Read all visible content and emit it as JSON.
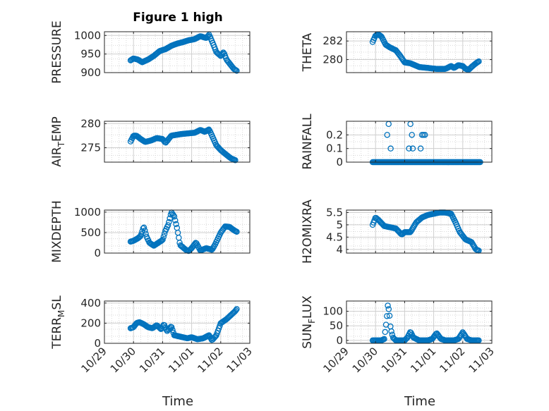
{
  "figure_title": "Figure 1 high",
  "marker_color": "#0072BD",
  "axis_color": "#262626",
  "grid_color": "#d9d9d9",
  "xaxis": {
    "label": "Time",
    "ticks": [
      {
        "value": 0,
        "label": "10/29"
      },
      {
        "value": 1,
        "label": "10/30"
      },
      {
        "value": 2,
        "label": "10/31"
      },
      {
        "value": 3,
        "label": "11/01"
      },
      {
        "value": 4,
        "label": "11/02"
      },
      {
        "value": 5,
        "label": "11/03"
      }
    ],
    "xlim": [
      0,
      5
    ]
  },
  "chart_data": [
    {
      "type": "scatter",
      "name": "pressure",
      "ylabel": "PRESSURE",
      "ylim": [
        900,
        1010
      ],
      "yticks": [
        {
          "v": 900,
          "l": "900"
        },
        {
          "v": 950,
          "l": "950"
        },
        {
          "v": 1000,
          "l": "1000"
        }
      ],
      "keys": [
        [
          0.9,
          933
        ],
        [
          1.0,
          938
        ],
        [
          1.15,
          935
        ],
        [
          1.3,
          928
        ],
        [
          1.5,
          935
        ],
        [
          1.7,
          945
        ],
        [
          1.9,
          958
        ],
        [
          2.1,
          963
        ],
        [
          2.3,
          972
        ],
        [
          2.5,
          978
        ],
        [
          2.7,
          982
        ],
        [
          2.9,
          987
        ],
        [
          3.1,
          990
        ],
        [
          3.3,
          998
        ],
        [
          3.5,
          993
        ],
        [
          3.6,
          1002
        ],
        [
          3.75,
          975
        ],
        [
          3.85,
          955
        ],
        [
          4.0,
          945
        ],
        [
          4.1,
          955
        ],
        [
          4.2,
          935
        ],
        [
          4.35,
          920
        ],
        [
          4.45,
          910
        ],
        [
          4.55,
          905
        ]
      ]
    },
    {
      "type": "scatter",
      "name": "theta",
      "ylabel": "THETA",
      "ylim": [
        278.6,
        283.0
      ],
      "yticks": [
        {
          "v": 280,
          "l": "280"
        },
        {
          "v": 282,
          "l": "282"
        }
      ],
      "keys": [
        [
          0.9,
          281.9
        ],
        [
          1.0,
          282.6
        ],
        [
          1.1,
          282.7
        ],
        [
          1.2,
          282.5
        ],
        [
          1.35,
          281.6
        ],
        [
          1.5,
          281.3
        ],
        [
          1.7,
          281.0
        ],
        [
          1.85,
          280.4
        ],
        [
          2.0,
          279.7
        ],
        [
          2.2,
          279.6
        ],
        [
          2.5,
          279.2
        ],
        [
          2.8,
          279.1
        ],
        [
          3.1,
          279.0
        ],
        [
          3.4,
          279.0
        ],
        [
          3.6,
          279.3
        ],
        [
          3.7,
          279.1
        ],
        [
          3.85,
          279.4
        ],
        [
          4.0,
          279.3
        ],
        [
          4.1,
          279.0
        ],
        [
          4.2,
          278.9
        ],
        [
          4.3,
          279.2
        ],
        [
          4.45,
          279.6
        ],
        [
          4.55,
          279.8
        ]
      ]
    },
    {
      "type": "scatter",
      "name": "air_temp",
      "ylabel_main": "AIR",
      "ylabel_sub": "T",
      "ylabel_rest": "EMP",
      "ylim": [
        272,
        280.5
      ],
      "yticks": [
        {
          "v": 275,
          "l": "275"
        },
        {
          "v": 280,
          "l": "280"
        }
      ],
      "keys": [
        [
          0.9,
          276.3
        ],
        [
          1.0,
          277.5
        ],
        [
          1.1,
          277.5
        ],
        [
          1.25,
          276.8
        ],
        [
          1.4,
          276.2
        ],
        [
          1.6,
          276.5
        ],
        [
          1.8,
          277.0
        ],
        [
          2.0,
          276.8
        ],
        [
          2.1,
          276.0
        ],
        [
          2.3,
          277.5
        ],
        [
          2.6,
          277.8
        ],
        [
          2.9,
          278.0
        ],
        [
          3.1,
          278.1
        ],
        [
          3.3,
          278.7
        ],
        [
          3.45,
          278.3
        ],
        [
          3.6,
          278.8
        ],
        [
          3.7,
          277.5
        ],
        [
          3.85,
          275.5
        ],
        [
          4.0,
          274.5
        ],
        [
          4.2,
          273.5
        ],
        [
          4.35,
          272.8
        ],
        [
          4.5,
          272.4
        ]
      ]
    },
    {
      "type": "scatter",
      "name": "rainfall",
      "ylabel": "RAINFALL",
      "ylim": [
        0,
        0.3
      ],
      "yticks": [
        {
          "v": 0,
          "l": "0"
        },
        {
          "v": 0.1,
          "l": "0.1"
        },
        {
          "v": 0.2,
          "l": "0.2"
        }
      ],
      "baseline": {
        "from": 0.9,
        "to": 4.6,
        "n": 130,
        "value": 0
      },
      "extra_points": [
        [
          1.4,
          0.2
        ],
        [
          1.45,
          0.28
        ],
        [
          1.52,
          0.1
        ],
        [
          2.15,
          0.1
        ],
        [
          2.2,
          0.28
        ],
        [
          2.25,
          0.2
        ],
        [
          2.28,
          0.1
        ],
        [
          2.55,
          0.1
        ],
        [
          2.6,
          0.2
        ],
        [
          2.65,
          0.2
        ],
        [
          2.7,
          0.2
        ]
      ]
    },
    {
      "type": "scatter",
      "name": "mixdepth",
      "ylabel": "MIXDEPTH",
      "ylim": [
        0,
        1050
      ],
      "yticks": [
        {
          "v": 0,
          "l": "0"
        },
        {
          "v": 500,
          "l": "500"
        },
        {
          "v": 1000,
          "l": "1000"
        }
      ],
      "keys": [
        [
          0.9,
          280
        ],
        [
          1.0,
          300
        ],
        [
          1.15,
          360
        ],
        [
          1.25,
          420
        ],
        [
          1.35,
          650
        ],
        [
          1.45,
          400
        ],
        [
          1.55,
          250
        ],
        [
          1.7,
          180
        ],
        [
          1.85,
          250
        ],
        [
          2.0,
          320
        ],
        [
          2.1,
          550
        ],
        [
          2.2,
          700
        ],
        [
          2.3,
          1000
        ],
        [
          2.4,
          900
        ],
        [
          2.5,
          600
        ],
        [
          2.6,
          200
        ],
        [
          2.8,
          80
        ],
        [
          2.9,
          50
        ],
        [
          3.0,
          120
        ],
        [
          3.15,
          260
        ],
        [
          3.3,
          60
        ],
        [
          3.5,
          120
        ],
        [
          3.7,
          80
        ],
        [
          3.8,
          200
        ],
        [
          4.0,
          500
        ],
        [
          4.15,
          650
        ],
        [
          4.3,
          640
        ],
        [
          4.45,
          560
        ],
        [
          4.55,
          520
        ]
      ]
    },
    {
      "type": "scatter",
      "name": "h2omixra",
      "ylabel": "H2OMIXRA",
      "ylim": [
        3.85,
        5.6
      ],
      "yticks": [
        {
          "v": 4,
          "l": "4"
        },
        {
          "v": 4.5,
          "l": "4.5"
        },
        {
          "v": 5,
          "l": "5"
        },
        {
          "v": 5.5,
          "l": "5.5"
        }
      ],
      "keys": [
        [
          0.9,
          5.0
        ],
        [
          1.0,
          5.3
        ],
        [
          1.1,
          5.2
        ],
        [
          1.3,
          4.95
        ],
        [
          1.5,
          4.9
        ],
        [
          1.7,
          4.85
        ],
        [
          1.9,
          4.6
        ],
        [
          2.0,
          4.7
        ],
        [
          2.2,
          4.7
        ],
        [
          2.4,
          5.1
        ],
        [
          2.6,
          5.3
        ],
        [
          2.8,
          5.4
        ],
        [
          3.0,
          5.45
        ],
        [
          3.2,
          5.5
        ],
        [
          3.4,
          5.5
        ],
        [
          3.6,
          5.45
        ],
        [
          3.75,
          5.1
        ],
        [
          3.9,
          4.7
        ],
        [
          4.1,
          4.4
        ],
        [
          4.3,
          4.3
        ],
        [
          4.45,
          4.0
        ],
        [
          4.55,
          3.95
        ]
      ]
    },
    {
      "type": "scatter",
      "name": "terr_msl",
      "ylabel_main": "TERR",
      "ylabel_sub": "M",
      "ylabel_rest": "SL",
      "ylim": [
        0,
        420
      ],
      "yticks": [
        {
          "v": 0,
          "l": "0"
        },
        {
          "v": 200,
          "l": "200"
        },
        {
          "v": 400,
          "l": "400"
        }
      ],
      "keys": [
        [
          0.9,
          150
        ],
        [
          1.0,
          160
        ],
        [
          1.1,
          200
        ],
        [
          1.2,
          210
        ],
        [
          1.35,
          190
        ],
        [
          1.5,
          160
        ],
        [
          1.65,
          150
        ],
        [
          1.8,
          180
        ],
        [
          1.95,
          140
        ],
        [
          2.05,
          190
        ],
        [
          2.15,
          120
        ],
        [
          2.3,
          170
        ],
        [
          2.4,
          80
        ],
        [
          2.55,
          70
        ],
        [
          2.7,
          60
        ],
        [
          2.85,
          50
        ],
        [
          3.0,
          60
        ],
        [
          3.2,
          40
        ],
        [
          3.4,
          50
        ],
        [
          3.6,
          80
        ],
        [
          3.7,
          30
        ],
        [
          3.85,
          80
        ],
        [
          4.0,
          200
        ],
        [
          4.2,
          240
        ],
        [
          4.35,
          280
        ],
        [
          4.5,
          320
        ],
        [
          4.55,
          340
        ]
      ]
    },
    {
      "type": "scatter",
      "name": "sun_flux",
      "ylabel_main": "SUN",
      "ylabel_sub": "F",
      "ylabel_rest": "LUX",
      "ylim": [
        -10,
        135
      ],
      "yticks": [
        {
          "v": 0,
          "l": "0"
        },
        {
          "v": 50,
          "l": "50"
        },
        {
          "v": 100,
          "l": "100"
        }
      ],
      "keys": [
        [
          0.9,
          0
        ],
        [
          1.2,
          0
        ],
        [
          1.3,
          5
        ],
        [
          1.38,
          70
        ],
        [
          1.42,
          120
        ],
        [
          1.47,
          100
        ],
        [
          1.52,
          40
        ],
        [
          1.6,
          10
        ],
        [
          1.7,
          0
        ],
        [
          2.0,
          0
        ],
        [
          2.1,
          10
        ],
        [
          2.2,
          30
        ],
        [
          2.3,
          10
        ],
        [
          2.5,
          0
        ],
        [
          2.8,
          0
        ],
        [
          2.95,
          5
        ],
        [
          3.1,
          25
        ],
        [
          3.25,
          5
        ],
        [
          3.4,
          0
        ],
        [
          3.7,
          0
        ],
        [
          3.85,
          5
        ],
        [
          4.0,
          28
        ],
        [
          4.15,
          5
        ],
        [
          4.3,
          0
        ],
        [
          4.55,
          0
        ]
      ]
    }
  ]
}
